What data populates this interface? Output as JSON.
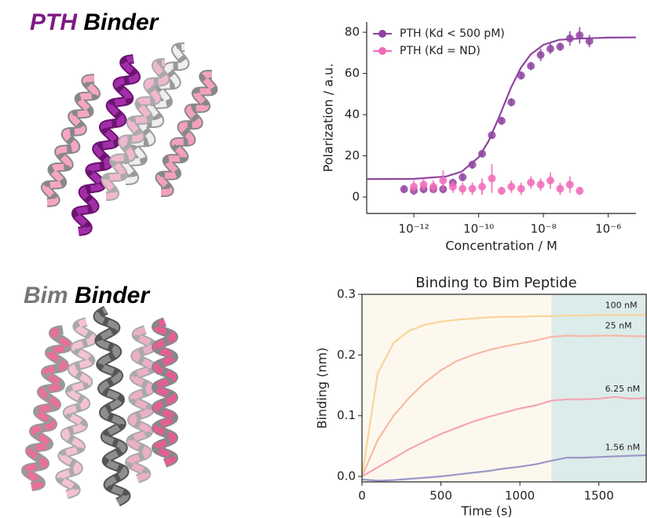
{
  "panel_labels": [
    [
      "PTH",
      "Binder"
    ],
    [
      "Bim",
      "Binder"
    ]
  ],
  "chart_data": [
    {
      "type": "scatter",
      "xlabel": "Concentration / M",
      "ylabel": "Polarization / a.u.",
      "xscale": "log",
      "xlim": [
        3.5e-14,
        7.2e-06
      ],
      "ylim": [
        -8,
        85
      ],
      "xticks": [
        {
          "value": 1e-12,
          "label": "10⁻¹²"
        },
        {
          "value": 1e-10,
          "label": "10⁻¹⁰"
        },
        {
          "value": 1e-08,
          "label": "10⁻⁸"
        },
        {
          "value": 1e-06,
          "label": "10⁻⁶"
        }
      ],
      "yticks": [
        0,
        20,
        40,
        60,
        80
      ],
      "grid": false,
      "legend": "upper left",
      "series": [
        {
          "name": "PTH (Kd < 500 pM)",
          "color": "#8e44a0",
          "x": [
            5e-13,
            1e-12,
            2e-12,
            4e-12,
            8e-12,
            1.6e-11,
            3.2e-11,
            6.4e-11,
            1.28e-10,
            2.56e-10,
            5.12e-10,
            1.024e-09,
            2.048e-09,
            4.096e-09,
            8.192e-09,
            1.6384e-08,
            3.2768e-08,
            6.5536e-08,
            1.31072e-07,
            2.62144e-07
          ],
          "values": [
            3.8,
            3.1,
            3.8,
            3.8,
            3.8,
            6.9,
            9.6,
            15.7,
            21,
            30,
            37,
            46,
            59,
            63.6,
            69,
            72,
            73,
            77,
            78.5,
            75.7
          ],
          "errors": [
            2,
            2,
            2,
            2,
            2,
            2,
            2,
            2,
            1.5,
            1.5,
            2,
            2,
            2,
            2,
            3,
            2.5,
            2,
            3.5,
            4,
            3
          ]
        },
        {
          "name": "PTH (Kd = ND)",
          "color": "#f06bb8",
          "x": [
            1e-12,
            2e-12,
            4e-12,
            8e-12,
            1.6e-11,
            3.2e-11,
            6.4e-11,
            1.28e-10,
            2.56e-10,
            5.12e-10,
            1.024e-09,
            2.048e-09,
            4.096e-09,
            8.192e-09,
            1.6384e-08,
            3.2768e-08,
            6.5536e-08,
            1.31072e-07
          ],
          "values": [
            5,
            6,
            5,
            8,
            5,
            4,
            4,
            5,
            9,
            3,
            5,
            4,
            7,
            6,
            8,
            4,
            6,
            3
          ],
          "errors": [
            3,
            3,
            3,
            5,
            3,
            3,
            3,
            4,
            7,
            2,
            3,
            3,
            3,
            3,
            4,
            3,
            4,
            2
          ]
        }
      ],
      "fit": {
        "color": "#8e44a0",
        "x": [
          3.5e-14,
          1e-12,
          1e-11,
          3e-11,
          1e-10,
          2e-10,
          4e-10,
          7e-10,
          1e-09,
          2e-09,
          4e-09,
          1e-08,
          3e-08,
          1e-07,
          1e-06,
          7.2e-06
        ],
        "values": [
          8.7,
          8.8,
          10.0,
          12.3,
          19.3,
          27.0,
          37.7,
          47.2,
          53.1,
          62.7,
          69.2,
          73.9,
          76.3,
          76.9,
          77.4,
          77.5
        ]
      }
    },
    {
      "type": "line",
      "title": "Binding to Bim Peptide",
      "xlabel": "Time (s)",
      "ylabel": "Binding (nm)",
      "xlim": [
        0,
        1800
      ],
      "ylim": [
        -0.009,
        0.3
      ],
      "xticks": [
        0,
        500,
        1000,
        1500
      ],
      "yticks": [
        {
          "value": 0,
          "label": "0.0"
        },
        0.1,
        0.2,
        0.3
      ],
      "regions": [
        {
          "xlim": [
            0,
            1200
          ],
          "color": "#fdf8ee"
        },
        {
          "xlim": [
            1200,
            1800
          ],
          "color": "#dcecea"
        }
      ],
      "x": [
        0,
        100,
        200,
        300,
        400,
        500,
        600,
        700,
        800,
        900,
        1000,
        1100,
        1200,
        1300,
        1400,
        1500,
        1600,
        1700,
        1800
      ],
      "series": [
        {
          "name": "100 nM",
          "color": "#f9d49a",
          "values": [
            0,
            0.17,
            0.22,
            0.24,
            0.25,
            0.255,
            0.258,
            0.26,
            0.262,
            0.263,
            0.263,
            0.264,
            0.264,
            0.265,
            0.265,
            0.266,
            0.266,
            0.266,
            0.266
          ]
        },
        {
          "name": "25 nM",
          "color": "#f7b9a6",
          "values": [
            0,
            0.06,
            0.1,
            0.13,
            0.155,
            0.175,
            0.19,
            0.2,
            0.208,
            0.214,
            0.219,
            0.224,
            0.23,
            0.232,
            0.231,
            0.232,
            0.232,
            0.231,
            0.231
          ]
        },
        {
          "name": "6.25 nM",
          "color": "#f4a5b5",
          "values": [
            0,
            0.015,
            0.03,
            0.045,
            0.058,
            0.07,
            0.08,
            0.09,
            0.098,
            0.105,
            0.112,
            0.117,
            0.125,
            0.127,
            0.127,
            0.128,
            0.131,
            0.128,
            0.129
          ]
        },
        {
          "name": "1.56 nM",
          "color": "#9b97c9",
          "values": [
            -0.005,
            -0.007,
            -0.006,
            -0.004,
            -0.002,
            0,
            0.003,
            0.006,
            0.009,
            0.013,
            0.016,
            0.02,
            0.026,
            0.031,
            0.031,
            0.032,
            0.033,
            0.034,
            0.035
          ]
        }
      ]
    }
  ]
}
